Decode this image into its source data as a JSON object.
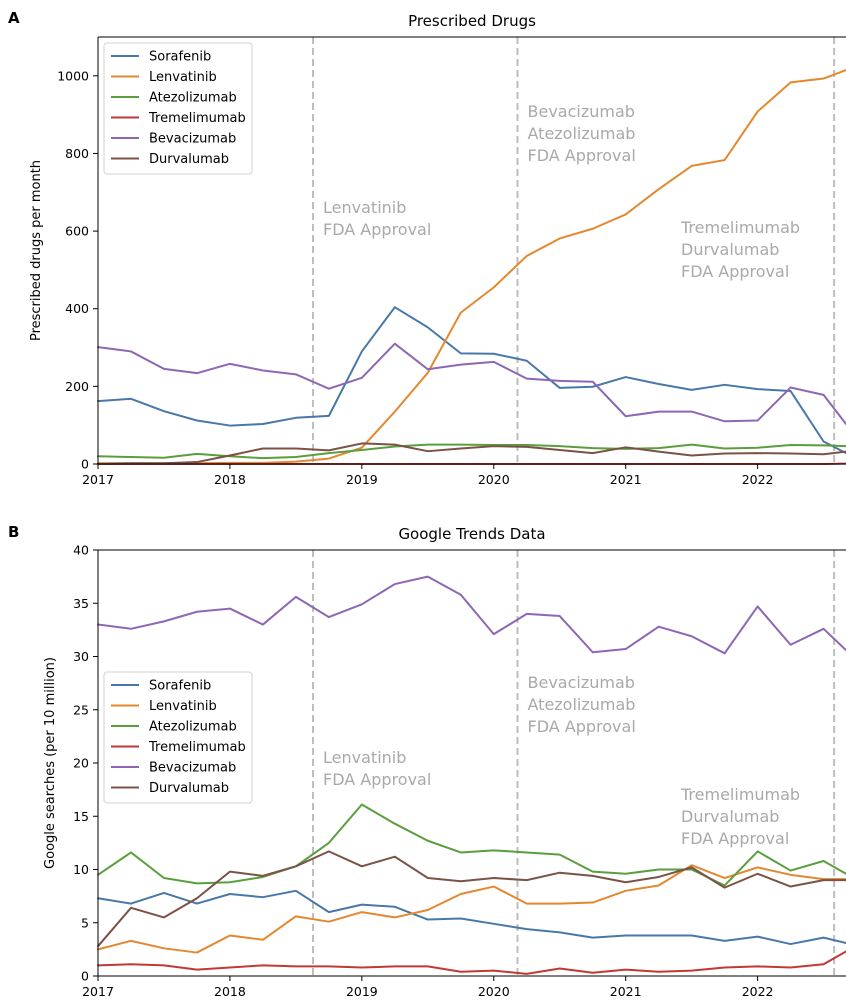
{
  "chart_data": [
    {
      "panel": "A",
      "type": "line",
      "title": "Prescribed Drugs",
      "xlabel": "",
      "ylabel": "Prescribed drugs per month",
      "xlim": [
        2017.0,
        2022.67
      ],
      "ylim": [
        0,
        1100
      ],
      "xticks": [
        2017,
        2018,
        2019,
        2020,
        2021,
        2022
      ],
      "yticks": [
        0,
        200,
        400,
        600,
        800,
        1000
      ],
      "grid": false,
      "legend_position": "top-left",
      "x": [
        2017.0,
        2017.25,
        2017.5,
        2017.75,
        2018.0,
        2018.25,
        2018.5,
        2018.75,
        2019.0,
        2019.25,
        2019.5,
        2019.75,
        2020.0,
        2020.25,
        2020.5,
        2020.75,
        2021.0,
        2021.25,
        2021.5,
        2021.75,
        2022.0,
        2022.25,
        2022.5,
        2022.67
      ],
      "series": [
        {
          "name": "Sorafenib",
          "color": "#4878a8",
          "values": [
            162,
            168,
            136,
            112,
            99,
            103,
            119,
            124,
            290,
            404,
            352,
            285,
            284,
            266,
            196,
            199,
            224,
            206,
            191,
            204,
            193,
            188,
            58,
            28
          ]
        },
        {
          "name": "Lenvatinib",
          "color": "#e3882f",
          "values": [
            2,
            2,
            2,
            2,
            3,
            3,
            6,
            14,
            42,
            135,
            235,
            390,
            455,
            536,
            581,
            606,
            643,
            708,
            768,
            783,
            908,
            983,
            993,
            1015
          ]
        },
        {
          "name": "Atezolizumab",
          "color": "#5a9e3e",
          "values": [
            20,
            18,
            16,
            26,
            20,
            15,
            18,
            28,
            36,
            45,
            50,
            50,
            49,
            49,
            46,
            41,
            39,
            41,
            50,
            40,
            42,
            49,
            48,
            46
          ]
        },
        {
          "name": "Tremelimumab",
          "color": "#c03a35",
          "values": [
            0,
            0,
            0,
            0,
            0,
            0,
            0,
            0,
            0,
            0,
            0,
            0,
            0,
            0,
            0,
            0,
            0,
            0,
            0,
            0,
            0,
            0,
            0,
            1
          ]
        },
        {
          "name": "Bevacizumab",
          "color": "#8e67b4",
          "values": [
            301,
            290,
            245,
            234,
            258,
            241,
            231,
            194,
            222,
            310,
            244,
            256,
            263,
            220,
            214,
            212,
            123,
            135,
            135,
            110,
            112,
            197,
            178,
            103
          ]
        },
        {
          "name": "Durvalumab",
          "color": "#7b5246",
          "values": [
            0,
            2,
            2,
            5,
            22,
            40,
            40,
            35,
            53,
            50,
            33,
            40,
            46,
            44,
            36,
            28,
            43,
            32,
            22,
            27,
            28,
            27,
            25,
            32
          ]
        }
      ],
      "annotations": [
        {
          "x": 2018.63,
          "lines": [
            "Lenvatinib",
            "FDA Approval"
          ]
        },
        {
          "x": 2020.18,
          "lines": [
            "Bevacizumab",
            "Atezolizumab",
            "FDA Approval"
          ]
        },
        {
          "x": 2022.58,
          "lines": [
            "Tremelimumab",
            "Durvalumab",
            "FDA Approval"
          ]
        }
      ]
    },
    {
      "panel": "B",
      "type": "line",
      "title": "Google Trends Data",
      "xlabel": "",
      "ylabel": "Google searches (per 10 million)",
      "xlim": [
        2017.0,
        2022.67
      ],
      "ylim": [
        0,
        40
      ],
      "xticks": [
        2017,
        2018,
        2019,
        2020,
        2021,
        2022
      ],
      "yticks": [
        0,
        5,
        10,
        15,
        20,
        25,
        30,
        35,
        40
      ],
      "grid": false,
      "legend_position": "middle-left",
      "x": [
        2017.0,
        2017.25,
        2017.5,
        2017.75,
        2018.0,
        2018.25,
        2018.5,
        2018.75,
        2019.0,
        2019.25,
        2019.5,
        2019.75,
        2020.0,
        2020.25,
        2020.5,
        2020.75,
        2021.0,
        2021.25,
        2021.5,
        2021.75,
        2022.0,
        2022.25,
        2022.5,
        2022.67
      ],
      "series": [
        {
          "name": "Sorafenib",
          "color": "#4878a8",
          "values": [
            7.3,
            6.8,
            7.8,
            6.8,
            7.7,
            7.4,
            8.0,
            6.0,
            6.7,
            6.5,
            5.3,
            5.4,
            4.9,
            4.4,
            4.1,
            3.6,
            3.8,
            3.8,
            3.8,
            3.3,
            3.7,
            3.0,
            3.6,
            3.1
          ]
        },
        {
          "name": "Lenvatinib",
          "color": "#e3882f",
          "values": [
            2.5,
            3.3,
            2.6,
            2.2,
            3.8,
            3.4,
            5.6,
            5.1,
            6.0,
            5.5,
            6.2,
            7.7,
            8.4,
            6.8,
            6.8,
            6.9,
            8.0,
            8.5,
            10.4,
            9.2,
            10.2,
            9.5,
            9.1,
            9.1
          ]
        },
        {
          "name": "Atezolizumab",
          "color": "#5a9e3e",
          "values": [
            9.5,
            11.6,
            9.2,
            8.7,
            8.8,
            9.3,
            10.3,
            12.5,
            16.1,
            14.3,
            12.7,
            11.6,
            11.8,
            11.6,
            11.4,
            9.8,
            9.6,
            10.0,
            10.0,
            8.5,
            11.7,
            9.9,
            10.8,
            9.6
          ]
        },
        {
          "name": "Tremelimumab",
          "color": "#c03a35",
          "values": [
            1.0,
            1.1,
            1.0,
            0.6,
            0.8,
            1.0,
            0.9,
            0.9,
            0.8,
            0.9,
            0.9,
            0.4,
            0.5,
            0.2,
            0.7,
            0.3,
            0.6,
            0.4,
            0.5,
            0.8,
            0.9,
            0.8,
            1.1,
            2.3
          ]
        },
        {
          "name": "Bevacizumab",
          "color": "#8e67b4",
          "values": [
            33.0,
            32.6,
            33.3,
            34.2,
            34.5,
            33.0,
            35.6,
            33.7,
            34.9,
            36.8,
            37.5,
            35.8,
            32.1,
            34.0,
            33.8,
            30.4,
            30.7,
            32.8,
            31.9,
            30.3,
            34.7,
            31.1,
            32.6,
            30.6
          ]
        },
        {
          "name": "Durvalumab",
          "color": "#7b5246",
          "values": [
            2.8,
            6.4,
            5.5,
            7.3,
            9.8,
            9.4,
            10.3,
            11.7,
            10.3,
            11.2,
            9.2,
            8.9,
            9.2,
            9.0,
            9.7,
            9.4,
            8.8,
            9.3,
            10.2,
            8.3,
            9.6,
            8.4,
            9.0,
            9.0
          ]
        }
      ],
      "annotations": [
        {
          "x": 2018.63,
          "lines": [
            "Lenvatinib",
            "FDA Approval"
          ]
        },
        {
          "x": 2020.18,
          "lines": [
            "Bevacizumab",
            "Atezolizumab",
            "FDA Approval"
          ]
        },
        {
          "x": 2022.58,
          "lines": [
            "Tremelimumab",
            "Durvalumab",
            "FDA Approval"
          ]
        }
      ]
    }
  ]
}
